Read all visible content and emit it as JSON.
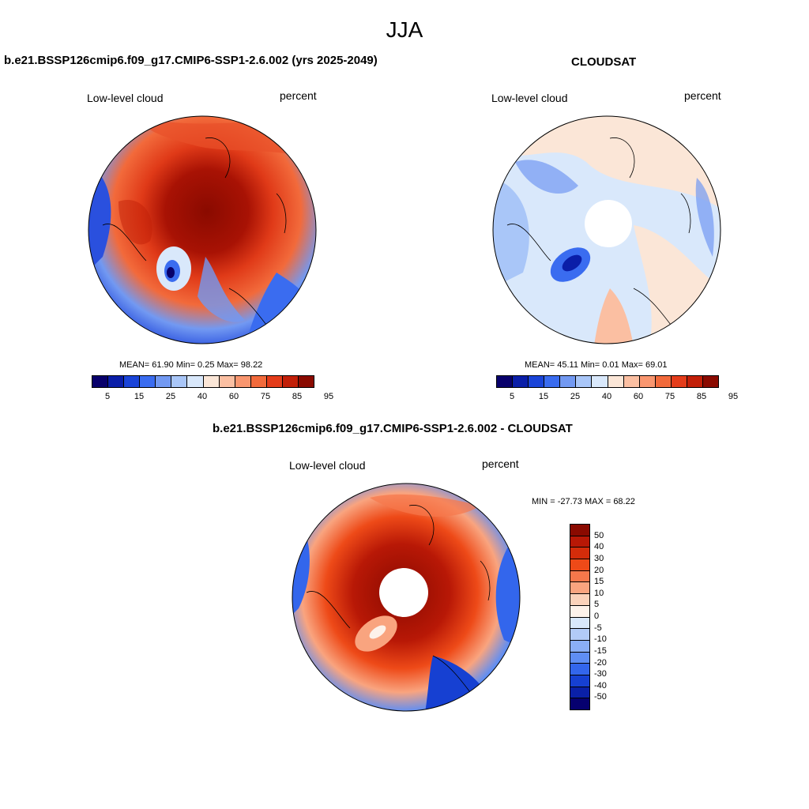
{
  "title": "JJA",
  "panels": [
    {
      "id": "model",
      "header": "b.e21.BSSP126cmip6.f09_g17.CMIP6-SSP1-2.6.002 (yrs 2025-2049)",
      "variable": "Low-level cloud",
      "units": "percent",
      "stats": "MEAN= 61.90 Min= 0.25 Max= 98.22"
    },
    {
      "id": "obs",
      "header": "CLOUDSAT",
      "variable": "Low-level cloud",
      "units": "percent",
      "stats": "MEAN= 45.11 Min= 0.01 Max= 69.01"
    },
    {
      "id": "diff",
      "header": "b.e21.BSSP126cmip6.f09_g17.CMIP6-SSP1-2.6.002 - CLOUDSAT",
      "variable": "Low-level cloud",
      "units": "percent",
      "stats": "MIN = -27.73 MAX = 68.22"
    }
  ],
  "colorbar_abs": {
    "colors": [
      "#08006b",
      "#0a1ea8",
      "#1a44d8",
      "#3a6cf0",
      "#7299f2",
      "#a9c6f8",
      "#d9e8fb",
      "#fbe6d7",
      "#fbbfa2",
      "#f9966f",
      "#f26a3b",
      "#e43c1a",
      "#c21f08",
      "#8a0a00"
    ],
    "tick_labels": [
      "5",
      "15",
      "25",
      "40",
      "60",
      "75",
      "85",
      "95"
    ]
  },
  "colorbar_diff": {
    "colors": [
      "#8a0a00",
      "#b81806",
      "#d42c0a",
      "#ee4a18",
      "#f6774b",
      "#f9a47f",
      "#fbd2ba",
      "#fdf2ea",
      "#d9e8fb",
      "#b2cbf7",
      "#8aaef5",
      "#5f8ef4",
      "#3366ec",
      "#1640d2",
      "#0a20a8",
      "#06006f"
    ],
    "tick_labels": [
      "50",
      "40",
      "30",
      "20",
      "15",
      "10",
      "5",
      "0",
      "-5",
      "-10",
      "-15",
      "-20",
      "-30",
      "-40",
      "-50"
    ]
  }
}
